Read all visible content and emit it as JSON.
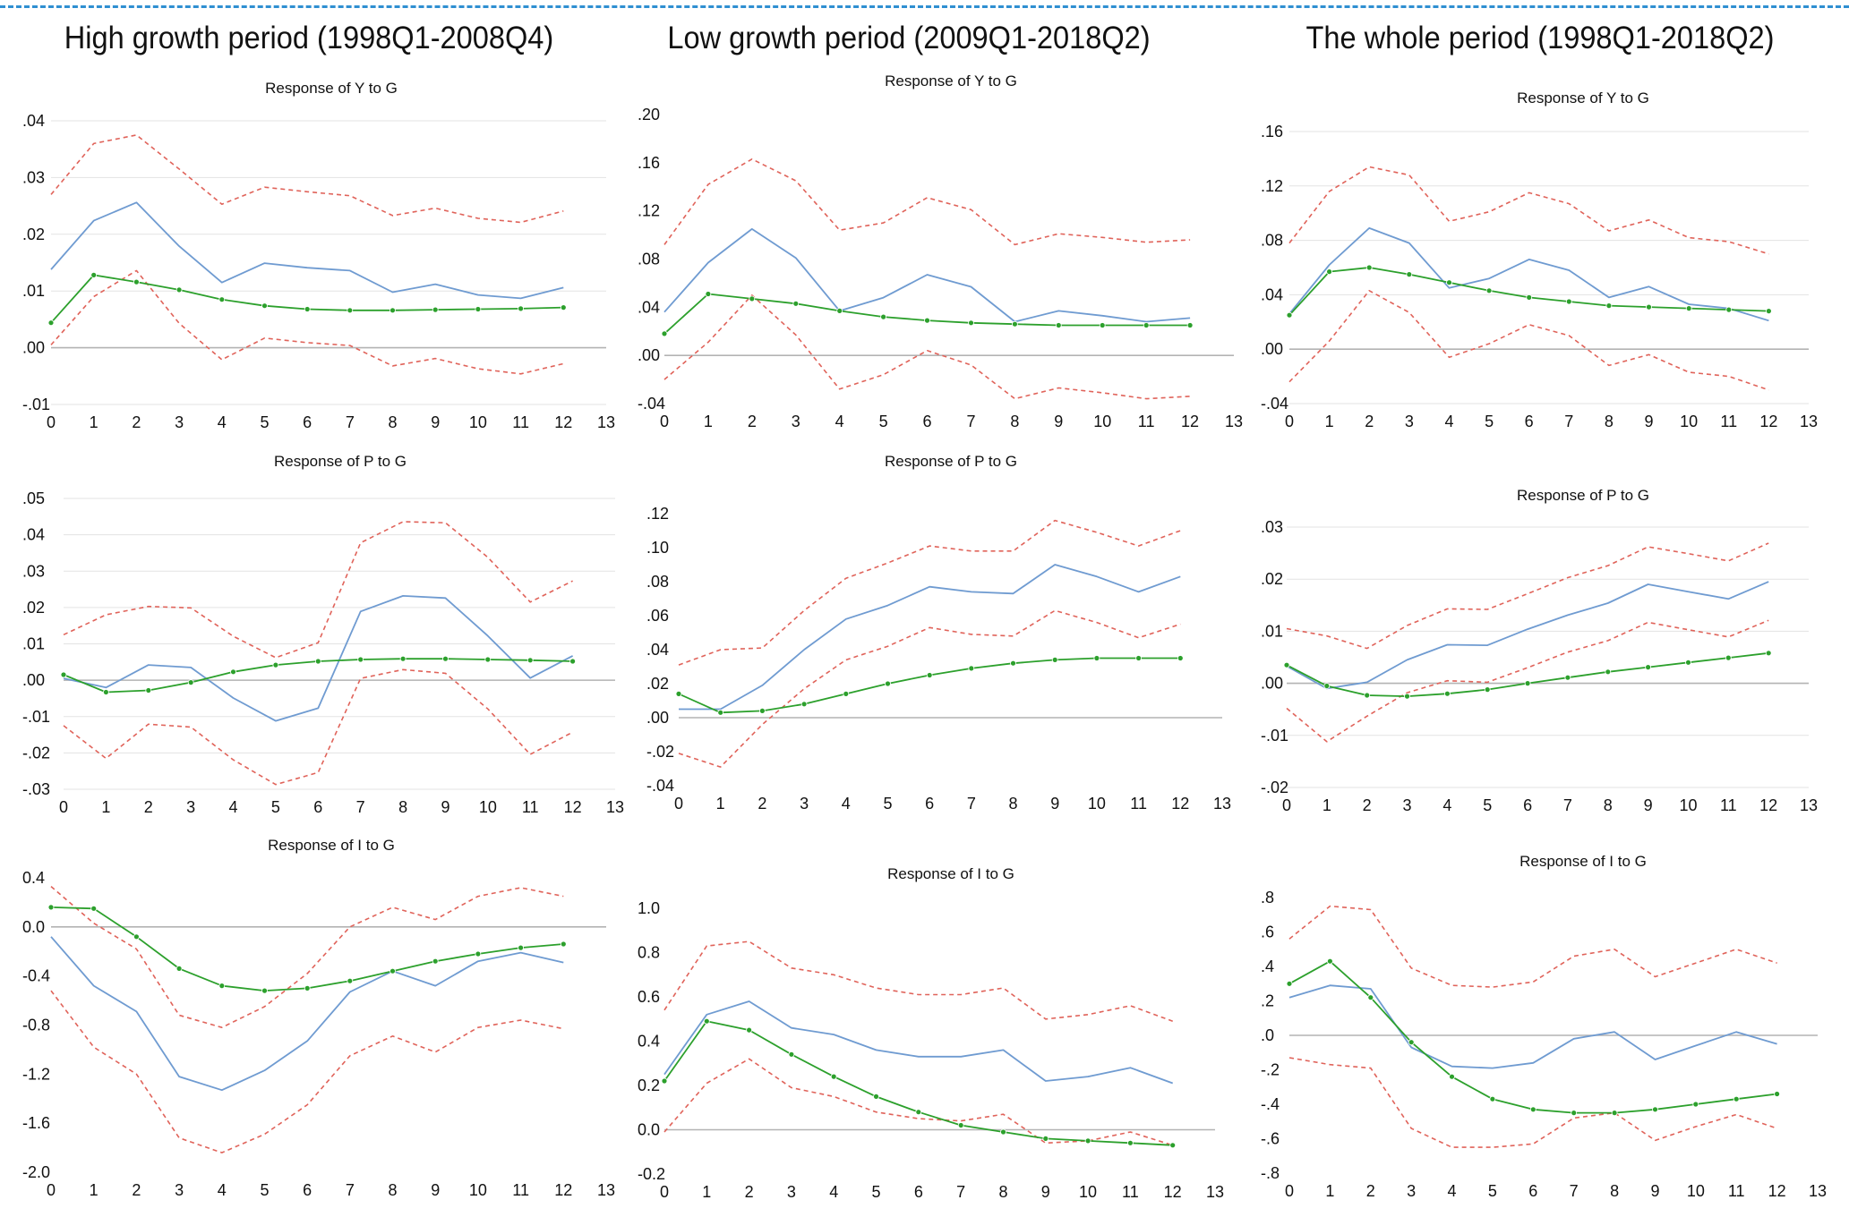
{
  "header": {
    "columns": [
      "High growth period (1998Q1-2008Q4)",
      "Low growth period (2009Q1-2018Q2)",
      "The whole period (1998Q1-2018Q2)"
    ]
  },
  "colors": {
    "point_estimate": "#6f9bd1",
    "confidence_band": "#e0635a",
    "comparison_line": "#2ca02c",
    "zero_line": "#b3b3b3",
    "grid": "#e3e3e3",
    "header_rule": "#2f8fd1"
  },
  "chart_data": [
    {
      "type": "line",
      "title": "Response of Y to G",
      "x": [
        0,
        1,
        2,
        3,
        4,
        5,
        6,
        7,
        8,
        9,
        10,
        11,
        12
      ],
      "xlim": [
        0,
        13
      ],
      "xticks": [
        "0",
        "1",
        "2",
        "3",
        "4",
        "5",
        "6",
        "7",
        "8",
        "9",
        "10",
        "11",
        "12",
        "13"
      ],
      "ylim": [
        -0.01,
        0.04
      ],
      "yticks": [
        ".04",
        ".03",
        ".02",
        ".01",
        ".00",
        "-.01"
      ],
      "grid": true,
      "series": [
        {
          "role": "upper",
          "values": [
            0.027,
            0.036,
            0.0375,
            0.0315,
            0.0253,
            0.0283,
            0.0275,
            0.0268,
            0.0233,
            0.0246,
            0.0228,
            0.0221,
            0.0241
          ]
        },
        {
          "role": "estimate",
          "values": [
            0.0138,
            0.0224,
            0.0256,
            0.0179,
            0.0115,
            0.0149,
            0.0141,
            0.0136,
            0.0098,
            0.0112,
            0.0093,
            0.0087,
            0.0106
          ]
        },
        {
          "role": "lower",
          "values": [
            0.0005,
            0.009,
            0.0136,
            0.0043,
            -0.0021,
            0.0017,
            0.0009,
            0.0004,
            -0.0032,
            -0.0019,
            -0.0037,
            -0.0046,
            -0.0028
          ]
        },
        {
          "role": "comparison",
          "values": [
            0.0044,
            0.0128,
            0.0116,
            0.0102,
            0.0085,
            0.0074,
            0.0068,
            0.0066,
            0.0066,
            0.0067,
            0.0068,
            0.0069,
            0.0071
          ]
        }
      ]
    },
    {
      "type": "line",
      "title": "Response of P to G",
      "x": [
        0,
        1,
        2,
        3,
        4,
        5,
        6,
        7,
        8,
        9,
        10,
        11,
        12
      ],
      "xlim": [
        0,
        13
      ],
      "xticks": [
        "0",
        "1",
        "2",
        "3",
        "4",
        "5",
        "6",
        "7",
        "8",
        "9",
        "10",
        "11",
        "12",
        "13"
      ],
      "ylim": [
        -0.03,
        0.05
      ],
      "yticks": [
        ".05",
        ".04",
        ".03",
        ".02",
        ".01",
        ".00",
        "-.01",
        "-.02",
        "-.03"
      ],
      "grid": true,
      "series": [
        {
          "role": "upper",
          "values": [
            0.0125,
            0.018,
            0.0203,
            0.0199,
            0.0121,
            0.0062,
            0.0103,
            0.0378,
            0.0436,
            0.0433,
            0.0338,
            0.0215,
            0.0273
          ]
        },
        {
          "role": "estimate",
          "values": [
            0.0005,
            -0.002,
            0.0042,
            0.0035,
            -0.0049,
            -0.0112,
            -0.0077,
            0.0189,
            0.0232,
            0.0226,
            0.0122,
            0.0006,
            0.0067
          ]
        },
        {
          "role": "lower",
          "values": [
            -0.0125,
            -0.0215,
            -0.0121,
            -0.0129,
            -0.0219,
            -0.0287,
            -0.0254,
            0.0005,
            0.0029,
            0.0019,
            -0.0079,
            -0.0204,
            -0.0143
          ]
        },
        {
          "role": "comparison",
          "values": [
            0.0015,
            -0.0033,
            -0.0028,
            -0.0006,
            0.0023,
            0.0042,
            0.0052,
            0.0057,
            0.0059,
            0.0059,
            0.0057,
            0.0055,
            0.0052
          ]
        }
      ]
    },
    {
      "type": "line",
      "title": "Response of I to G",
      "x": [
        0,
        1,
        2,
        3,
        4,
        5,
        6,
        7,
        8,
        9,
        10,
        11,
        12
      ],
      "xlim": [
        0,
        13
      ],
      "xticks": [
        "0",
        "1",
        "2",
        "3",
        "4",
        "5",
        "6",
        "7",
        "8",
        "9",
        "10",
        "11",
        "12",
        "13"
      ],
      "ylim": [
        -2.0,
        0.4
      ],
      "yticks": [
        "0.4",
        "0.0",
        "-0.4",
        "-0.8",
        "-1.2",
        "-1.6",
        "-2.0"
      ],
      "grid": false,
      "series": [
        {
          "role": "upper",
          "values": [
            0.33,
            0.03,
            -0.18,
            -0.72,
            -0.82,
            -0.65,
            -0.38,
            0.0,
            0.16,
            0.06,
            0.25,
            0.32,
            0.25
          ]
        },
        {
          "role": "estimate",
          "values": [
            -0.08,
            -0.48,
            -0.69,
            -1.22,
            -1.33,
            -1.17,
            -0.93,
            -0.53,
            -0.36,
            -0.48,
            -0.28,
            -0.21,
            -0.29
          ]
        },
        {
          "role": "lower",
          "values": [
            -0.52,
            -0.98,
            -1.2,
            -1.72,
            -1.84,
            -1.69,
            -1.45,
            -1.05,
            -0.89,
            -1.02,
            -0.82,
            -0.76,
            -0.83
          ]
        },
        {
          "role": "comparison",
          "values": [
            0.16,
            0.15,
            -0.08,
            -0.34,
            -0.48,
            -0.52,
            -0.5,
            -0.44,
            -0.36,
            -0.28,
            -0.22,
            -0.17,
            -0.14
          ]
        }
      ]
    },
    {
      "type": "line",
      "title": "Response of Y to G",
      "x": [
        0,
        1,
        2,
        3,
        4,
        5,
        6,
        7,
        8,
        9,
        10,
        11,
        12
      ],
      "xlim": [
        0,
        13
      ],
      "xticks": [
        "0",
        "1",
        "2",
        "3",
        "4",
        "5",
        "6",
        "7",
        "8",
        "9",
        "10",
        "11",
        "12",
        "13"
      ],
      "ylim": [
        -0.04,
        0.2
      ],
      "yticks": [
        ".20",
        ".16",
        ".12",
        ".08",
        ".04",
        ".00",
        "-.04"
      ],
      "grid": false,
      "series": [
        {
          "role": "upper",
          "values": [
            0.092,
            0.142,
            0.163,
            0.145,
            0.104,
            0.11,
            0.131,
            0.121,
            0.092,
            0.101,
            0.098,
            0.094,
            0.096
          ]
        },
        {
          "role": "estimate",
          "values": [
            0.036,
            0.077,
            0.105,
            0.081,
            0.037,
            0.048,
            0.067,
            0.057,
            0.028,
            0.037,
            0.033,
            0.028,
            0.031
          ]
        },
        {
          "role": "lower",
          "values": [
            -0.02,
            0.011,
            0.05,
            0.017,
            -0.028,
            -0.016,
            0.004,
            -0.008,
            -0.036,
            -0.027,
            -0.031,
            -0.036,
            -0.034
          ]
        },
        {
          "role": "comparison",
          "values": [
            0.018,
            0.051,
            0.047,
            0.043,
            0.037,
            0.032,
            0.029,
            0.027,
            0.026,
            0.025,
            0.025,
            0.025,
            0.025
          ]
        }
      ]
    },
    {
      "type": "line",
      "title": "Response of P to G",
      "x": [
        0,
        1,
        2,
        3,
        4,
        5,
        6,
        7,
        8,
        9,
        10,
        11,
        12
      ],
      "xlim": [
        0,
        13
      ],
      "xticks": [
        "0",
        "1",
        "2",
        "3",
        "4",
        "5",
        "6",
        "7",
        "8",
        "9",
        "10",
        "11",
        "12",
        "13"
      ],
      "ylim": [
        -0.04,
        0.12
      ],
      "yticks": [
        ".12",
        ".10",
        ".08",
        ".06",
        ".04",
        ".02",
        ".00",
        "-.02",
        "-.04"
      ],
      "grid": false,
      "series": [
        {
          "role": "upper",
          "values": [
            0.031,
            0.04,
            0.041,
            0.063,
            0.082,
            0.091,
            0.101,
            0.098,
            0.098,
            0.116,
            0.109,
            0.101,
            0.11
          ]
        },
        {
          "role": "estimate",
          "values": [
            0.005,
            0.005,
            0.019,
            0.04,
            0.058,
            0.066,
            0.077,
            0.074,
            0.073,
            0.09,
            0.083,
            0.074,
            0.083
          ]
        },
        {
          "role": "lower",
          "values": [
            -0.021,
            -0.029,
            -0.004,
            0.017,
            0.034,
            0.042,
            0.053,
            0.049,
            0.048,
            0.063,
            0.056,
            0.047,
            0.055
          ]
        },
        {
          "role": "comparison",
          "values": [
            0.014,
            0.003,
            0.004,
            0.008,
            0.014,
            0.02,
            0.025,
            0.029,
            0.032,
            0.034,
            0.035,
            0.035,
            0.035
          ]
        }
      ]
    },
    {
      "type": "line",
      "title": "Response of I to G",
      "x": [
        0,
        1,
        2,
        3,
        4,
        5,
        6,
        7,
        8,
        9,
        10,
        11,
        12
      ],
      "xlim": [
        0,
        13
      ],
      "xticks": [
        "0",
        "1",
        "2",
        "3",
        "4",
        "5",
        "6",
        "7",
        "8",
        "9",
        "10",
        "11",
        "12",
        "13"
      ],
      "ylim": [
        -0.2,
        1.0
      ],
      "yticks": [
        "1.0",
        "0.8",
        "0.6",
        "0.4",
        "0.2",
        "0.0",
        "-0.2"
      ],
      "grid": false,
      "series": [
        {
          "role": "upper",
          "values": [
            0.54,
            0.83,
            0.85,
            0.73,
            0.7,
            0.64,
            0.61,
            0.61,
            0.64,
            0.5,
            0.52,
            0.56,
            0.49
          ]
        },
        {
          "role": "estimate",
          "values": [
            0.25,
            0.52,
            0.58,
            0.46,
            0.43,
            0.36,
            0.33,
            0.33,
            0.36,
            0.22,
            0.24,
            0.28,
            0.21
          ]
        },
        {
          "role": "lower",
          "values": [
            -0.01,
            0.21,
            0.32,
            0.19,
            0.15,
            0.08,
            0.05,
            0.04,
            0.07,
            -0.06,
            -0.05,
            -0.01,
            -0.07
          ]
        },
        {
          "role": "comparison",
          "values": [
            0.22,
            0.49,
            0.45,
            0.34,
            0.24,
            0.15,
            0.08,
            0.02,
            -0.01,
            -0.04,
            -0.05,
            -0.06,
            -0.07
          ]
        }
      ]
    },
    {
      "type": "line",
      "title": "Response of Y to G",
      "x": [
        0,
        1,
        2,
        3,
        4,
        5,
        6,
        7,
        8,
        9,
        10,
        11,
        12
      ],
      "xlim": [
        0,
        13
      ],
      "xticks": [
        "0",
        "1",
        "2",
        "3",
        "4",
        "5",
        "6",
        "7",
        "8",
        "9",
        "10",
        "11",
        "12",
        "13"
      ],
      "ylim": [
        -0.04,
        0.16
      ],
      "yticks": [
        ".16",
        ".12",
        ".08",
        ".04",
        ".00",
        "-.04"
      ],
      "grid": true,
      "series": [
        {
          "role": "upper",
          "values": [
            0.078,
            0.116,
            0.134,
            0.128,
            0.094,
            0.101,
            0.115,
            0.107,
            0.087,
            0.095,
            0.082,
            0.079,
            0.07
          ]
        },
        {
          "role": "estimate",
          "values": [
            0.026,
            0.062,
            0.089,
            0.078,
            0.045,
            0.052,
            0.066,
            0.058,
            0.038,
            0.046,
            0.033,
            0.03,
            0.021
          ]
        },
        {
          "role": "lower",
          "values": [
            -0.024,
            0.006,
            0.043,
            0.027,
            -0.006,
            0.004,
            0.018,
            0.01,
            -0.012,
            -0.004,
            -0.017,
            -0.02,
            -0.03
          ]
        },
        {
          "role": "comparison",
          "values": [
            0.025,
            0.057,
            0.06,
            0.055,
            0.049,
            0.043,
            0.038,
            0.035,
            0.032,
            0.031,
            0.03,
            0.029,
            0.028
          ]
        }
      ]
    },
    {
      "type": "line",
      "title": "Response of P to G",
      "x": [
        0,
        1,
        2,
        3,
        4,
        5,
        6,
        7,
        8,
        9,
        10,
        11,
        12
      ],
      "xlim": [
        0,
        13
      ],
      "xticks": [
        "0",
        "1",
        "2",
        "3",
        "4",
        "5",
        "6",
        "7",
        "8",
        "9",
        "10",
        "11",
        "12",
        "13"
      ],
      "ylim": [
        -0.02,
        0.03
      ],
      "yticks": [
        ".03",
        ".02",
        ".01",
        ".00",
        "-.01",
        "-.02"
      ],
      "grid": true,
      "series": [
        {
          "role": "upper",
          "values": [
            0.0105,
            0.0091,
            0.0067,
            0.0111,
            0.0143,
            0.0142,
            0.0172,
            0.0203,
            0.0226,
            0.0262,
            0.0249,
            0.0235,
            0.0269
          ]
        },
        {
          "role": "estimate",
          "values": [
            0.0033,
            -0.001,
            0.0002,
            0.0045,
            0.0074,
            0.0073,
            0.0104,
            0.0131,
            0.0154,
            0.019,
            0.0176,
            0.0162,
            0.0195
          ]
        },
        {
          "role": "lower",
          "values": [
            -0.0048,
            -0.0112,
            -0.0063,
            -0.0018,
            0.0005,
            0.0002,
            0.003,
            0.006,
            0.0082,
            0.0117,
            0.0103,
            0.0089,
            0.0121
          ]
        },
        {
          "role": "comparison",
          "values": [
            0.0035,
            -0.0005,
            -0.0023,
            -0.0025,
            -0.002,
            -0.0012,
            0.0,
            0.0011,
            0.0022,
            0.0031,
            0.004,
            0.0049,
            0.0058
          ]
        }
      ]
    },
    {
      "type": "line",
      "title": "Response of I to G",
      "x": [
        0,
        1,
        2,
        3,
        4,
        5,
        6,
        7,
        8,
        9,
        10,
        11,
        12
      ],
      "xlim": [
        0,
        13
      ],
      "xticks": [
        "0",
        "1",
        "2",
        "3",
        "4",
        "5",
        "6",
        "7",
        "8",
        "9",
        "10",
        "11",
        "12",
        "13"
      ],
      "ylim": [
        -0.8,
        0.8
      ],
      "yticks": [
        ".8",
        ".6",
        ".4",
        ".2",
        ".0",
        "-.2",
        "-.4",
        "-.6",
        "-.8"
      ],
      "grid": false,
      "series": [
        {
          "role": "upper",
          "values": [
            0.56,
            0.75,
            0.73,
            0.39,
            0.29,
            0.28,
            0.31,
            0.46,
            0.5,
            0.34,
            0.42,
            0.5,
            0.42
          ]
        },
        {
          "role": "estimate",
          "values": [
            0.22,
            0.29,
            0.27,
            -0.07,
            -0.18,
            -0.19,
            -0.16,
            -0.02,
            0.02,
            -0.14,
            -0.06,
            0.02,
            -0.05
          ]
        },
        {
          "role": "lower",
          "values": [
            -0.13,
            -0.17,
            -0.19,
            -0.54,
            -0.65,
            -0.65,
            -0.63,
            -0.48,
            -0.45,
            -0.61,
            -0.53,
            -0.46,
            -0.54
          ]
        },
        {
          "role": "comparison",
          "values": [
            0.3,
            0.43,
            0.22,
            -0.04,
            -0.24,
            -0.37,
            -0.43,
            -0.45,
            -0.45,
            -0.43,
            -0.4,
            -0.37,
            -0.34
          ]
        }
      ]
    }
  ]
}
